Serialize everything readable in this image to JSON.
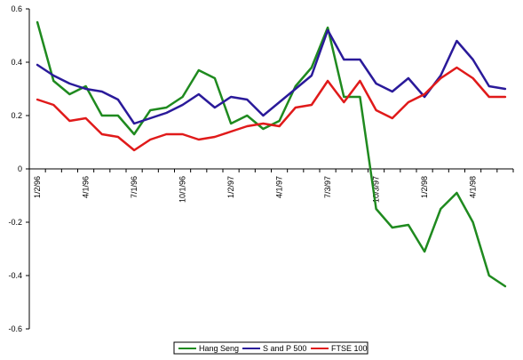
{
  "chart_data": {
    "type": "line",
    "x": [
      "1/2/96",
      "",
      "",
      "4/1/96",
      "",
      "",
      "7/1/96",
      "",
      "",
      "10/1/96",
      "",
      "",
      "1/2/97",
      "",
      "",
      "4/1/97",
      "",
      "",
      "7/3/97",
      "",
      "",
      "10/3/97",
      "",
      "",
      "1/2/98",
      "",
      "",
      "4/1/98",
      "",
      ""
    ],
    "x_tick_labels": [
      "1/2/96",
      "4/1/96",
      "7/1/96",
      "10/1/96",
      "1/2/97",
      "4/1/97",
      "7/3/97",
      "10/3/97",
      "1/2/98",
      "4/1/98"
    ],
    "x_tick_indices": [
      0,
      3,
      6,
      9,
      12,
      15,
      18,
      21,
      24,
      27
    ],
    "ylim": [
      -0.6,
      0.6
    ],
    "y_ticks": [
      "-0.6",
      "-0.4",
      "-0.2",
      "0",
      "0.2",
      "0.4",
      "0.6"
    ],
    "y_tick_values": [
      -0.6,
      -0.4,
      -0.2,
      0,
      0.2,
      0.4,
      0.6
    ],
    "grid": false,
    "legend": "bottom",
    "series": [
      {
        "name": "Hang Seng",
        "color": "#1f8a1f",
        "values": [
          0.55,
          0.33,
          0.28,
          0.31,
          0.2,
          0.2,
          0.13,
          0.22,
          0.23,
          0.27,
          0.37,
          0.34,
          0.17,
          0.2,
          0.15,
          0.18,
          0.31,
          0.38,
          0.53,
          0.27,
          0.27,
          -0.15,
          -0.22,
          -0.21,
          -0.31,
          -0.15,
          -0.09,
          -0.2,
          -0.4,
          -0.44
        ]
      },
      {
        "name": "S and P 500",
        "color": "#2a1a9a",
        "values": [
          0.39,
          0.35,
          0.32,
          0.3,
          0.29,
          0.26,
          0.17,
          0.19,
          0.21,
          0.24,
          0.28,
          0.23,
          0.27,
          0.26,
          0.2,
          0.25,
          0.3,
          0.35,
          0.52,
          0.41,
          0.41,
          0.32,
          0.29,
          0.34,
          0.27,
          0.35,
          0.48,
          0.41,
          0.31,
          0.3
        ]
      },
      {
        "name": "FTSE 100",
        "color": "#e01a1a",
        "values": [
          0.26,
          0.24,
          0.18,
          0.19,
          0.13,
          0.12,
          0.07,
          0.11,
          0.13,
          0.13,
          0.11,
          0.12,
          0.14,
          0.16,
          0.17,
          0.16,
          0.23,
          0.24,
          0.33,
          0.25,
          0.33,
          0.22,
          0.19,
          0.25,
          0.28,
          0.34,
          0.38,
          0.34,
          0.27,
          0.27
        ]
      }
    ]
  }
}
